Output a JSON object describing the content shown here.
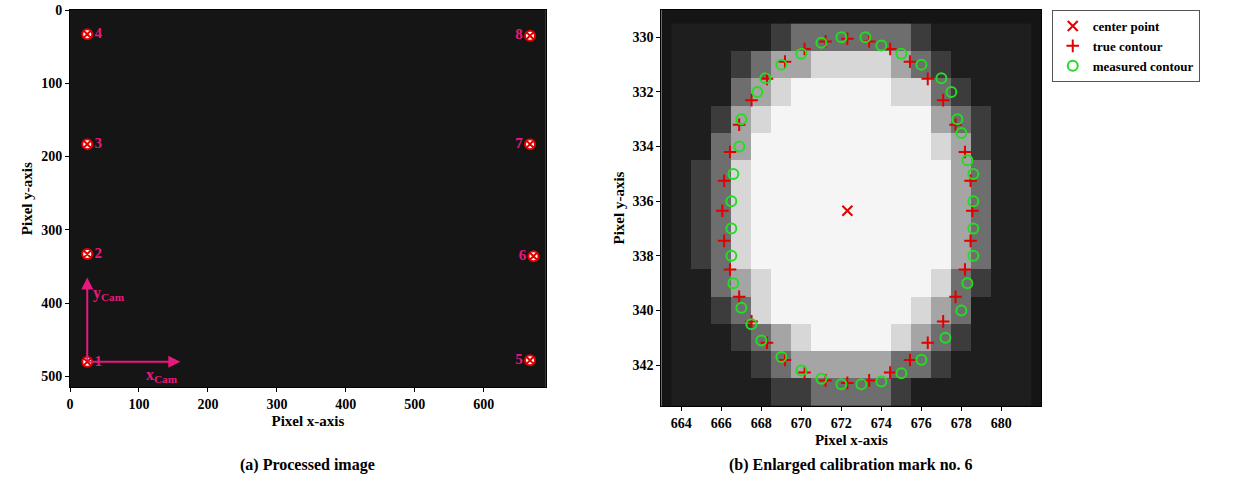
{
  "chart_data": [
    {
      "type": "scatter",
      "title": "(a) Processed image",
      "x_label": "Pixel x-axis",
      "y_label": "Pixel y-axis",
      "xlim": [
        0,
        690
      ],
      "ylim": [
        515,
        0
      ],
      "xticks": [
        0,
        100,
        200,
        300,
        400,
        500,
        600
      ],
      "yticks": [
        0,
        100,
        200,
        300,
        400,
        500
      ],
      "points": {
        "labels": [
          "1",
          "2",
          "3",
          "4",
          "5",
          "6",
          "7",
          "8"
        ],
        "x": [
          25,
          25,
          25,
          25,
          667,
          672,
          667,
          667
        ],
        "y": [
          480,
          333,
          183,
          33,
          478,
          336,
          183,
          35
        ],
        "color": "#e8197d"
      },
      "cam_axes": {
        "origin": [
          25,
          480
        ],
        "x_end": [
          160,
          480
        ],
        "y_end": [
          25,
          365
        ],
        "x_label": {
          "text": "x",
          "sub": "Cam"
        },
        "y_label": {
          "text": "y",
          "sub": "Cam"
        },
        "color": "#e8197d"
      }
    },
    {
      "type": "scatter",
      "title": "(b) Enlarged calibration mark no. 6",
      "x_label": "Pixel x-axis",
      "y_label": "Pixel y-axis",
      "xlim": [
        663,
        682
      ],
      "ylim": [
        343.5,
        329
      ],
      "xticks": [
        664,
        666,
        668,
        670,
        672,
        674,
        676,
        678,
        680
      ],
      "yticks": [
        330,
        332,
        334,
        336,
        338,
        340,
        342
      ],
      "legend": "right",
      "image": {
        "x": [
          664,
          665,
          666,
          667,
          668,
          669,
          670,
          671,
          672,
          673,
          674,
          675,
          676,
          677,
          678,
          679,
          680,
          681
        ],
        "y": [
          330,
          331,
          332,
          333,
          334,
          335,
          336,
          337,
          338,
          339,
          340,
          341,
          342,
          343
        ],
        "zlim": [
          0,
          255
        ],
        "z": [
          [
            30,
            30,
            30,
            30,
            30,
            60,
            110,
            110,
            110,
            110,
            110,
            110,
            60,
            30,
            30,
            30,
            30,
            30
          ],
          [
            30,
            30,
            30,
            60,
            110,
            165,
            165,
            215,
            215,
            215,
            215,
            165,
            110,
            60,
            30,
            30,
            30,
            30
          ],
          [
            30,
            30,
            30,
            110,
            165,
            215,
            245,
            245,
            245,
            245,
            245,
            215,
            215,
            110,
            60,
            30,
            30,
            30
          ],
          [
            30,
            30,
            60,
            165,
            215,
            245,
            245,
            245,
            245,
            245,
            245,
            245,
            245,
            165,
            110,
            60,
            30,
            30
          ],
          [
            30,
            30,
            110,
            165,
            245,
            245,
            245,
            245,
            245,
            245,
            245,
            245,
            245,
            215,
            165,
            60,
            30,
            30
          ],
          [
            30,
            60,
            110,
            215,
            245,
            245,
            245,
            245,
            245,
            245,
            245,
            245,
            245,
            245,
            165,
            110,
            30,
            30
          ],
          [
            30,
            60,
            110,
            215,
            245,
            245,
            245,
            245,
            245,
            245,
            245,
            245,
            245,
            245,
            165,
            110,
            30,
            30
          ],
          [
            30,
            60,
            110,
            215,
            245,
            245,
            245,
            245,
            245,
            245,
            245,
            245,
            245,
            245,
            165,
            110,
            30,
            30
          ],
          [
            30,
            60,
            110,
            215,
            245,
            245,
            245,
            245,
            245,
            245,
            245,
            245,
            245,
            245,
            165,
            110,
            30,
            30
          ],
          [
            30,
            30,
            110,
            165,
            215,
            245,
            245,
            245,
            245,
            245,
            245,
            245,
            245,
            215,
            110,
            60,
            30,
            30
          ],
          [
            30,
            30,
            60,
            110,
            215,
            245,
            245,
            245,
            245,
            245,
            245,
            245,
            215,
            165,
            110,
            30,
            30,
            30
          ],
          [
            30,
            30,
            30,
            60,
            110,
            165,
            215,
            245,
            245,
            245,
            245,
            215,
            165,
            110,
            60,
            30,
            30,
            30
          ],
          [
            30,
            30,
            30,
            30,
            60,
            110,
            165,
            165,
            165,
            165,
            165,
            110,
            110,
            60,
            30,
            30,
            30,
            30
          ],
          [
            30,
            30,
            30,
            30,
            30,
            60,
            60,
            110,
            110,
            110,
            110,
            60,
            30,
            30,
            30,
            30,
            30,
            30
          ]
        ]
      },
      "series": [
        {
          "name": "center point",
          "color": "#e00000",
          "marker": "x",
          "x": [
            672.3
          ],
          "y": [
            336.35
          ]
        },
        {
          "name": "true contour",
          "color": "#e00000",
          "marker": "cross",
          "x": [
            678.55,
            678.46,
            678.18,
            677.71,
            677.09,
            676.32,
            675.43,
            674.44,
            673.39,
            672.3,
            671.21,
            670.16,
            669.18,
            668.28,
            667.51,
            666.89,
            666.43,
            666.14,
            666.05,
            666.14,
            666.43,
            666.89,
            667.51,
            668.28,
            669.18,
            670.16,
            671.21,
            672.3,
            673.39,
            674.44,
            675.43,
            676.32,
            677.09,
            677.71,
            678.18,
            678.46
          ],
          "y": [
            336.35,
            337.45,
            338.5,
            339.5,
            340.4,
            341.18,
            341.81,
            342.27,
            342.56,
            342.65,
            342.56,
            342.27,
            341.81,
            341.18,
            340.4,
            339.5,
            338.5,
            337.45,
            336.35,
            335.25,
            334.2,
            333.2,
            332.3,
            331.52,
            330.89,
            330.43,
            330.15,
            330.05,
            330.15,
            330.43,
            330.89,
            331.52,
            332.3,
            333.2,
            334.2,
            335.25
          ]
        },
        {
          "name": "measured contour",
          "color": "#22dd22",
          "marker": "circle-open",
          "x": [
            672,
            673.2,
            674,
            675,
            676,
            677,
            677.5,
            677.8,
            678,
            678.3,
            678.6,
            678.6,
            678.6,
            678.6,
            678.3,
            678,
            677.2,
            676,
            675,
            674,
            673,
            672,
            671,
            670,
            669,
            668,
            667.5,
            667,
            666.6,
            666.5,
            666.5,
            666.5,
            666.6,
            666.9,
            667,
            667.8,
            668.2,
            669,
            670,
            671
          ],
          "y": [
            330,
            330,
            330.3,
            330.6,
            331,
            331.5,
            332,
            333,
            333.5,
            334.5,
            335,
            336,
            337,
            338,
            339,
            340,
            341,
            341.8,
            342.3,
            342.6,
            342.7,
            342.7,
            342.5,
            342.2,
            341.7,
            341.1,
            340.5,
            339.9,
            339,
            338,
            337,
            336,
            335,
            334,
            333,
            332,
            331.5,
            331,
            330.6,
            330.2
          ]
        }
      ]
    }
  ]
}
